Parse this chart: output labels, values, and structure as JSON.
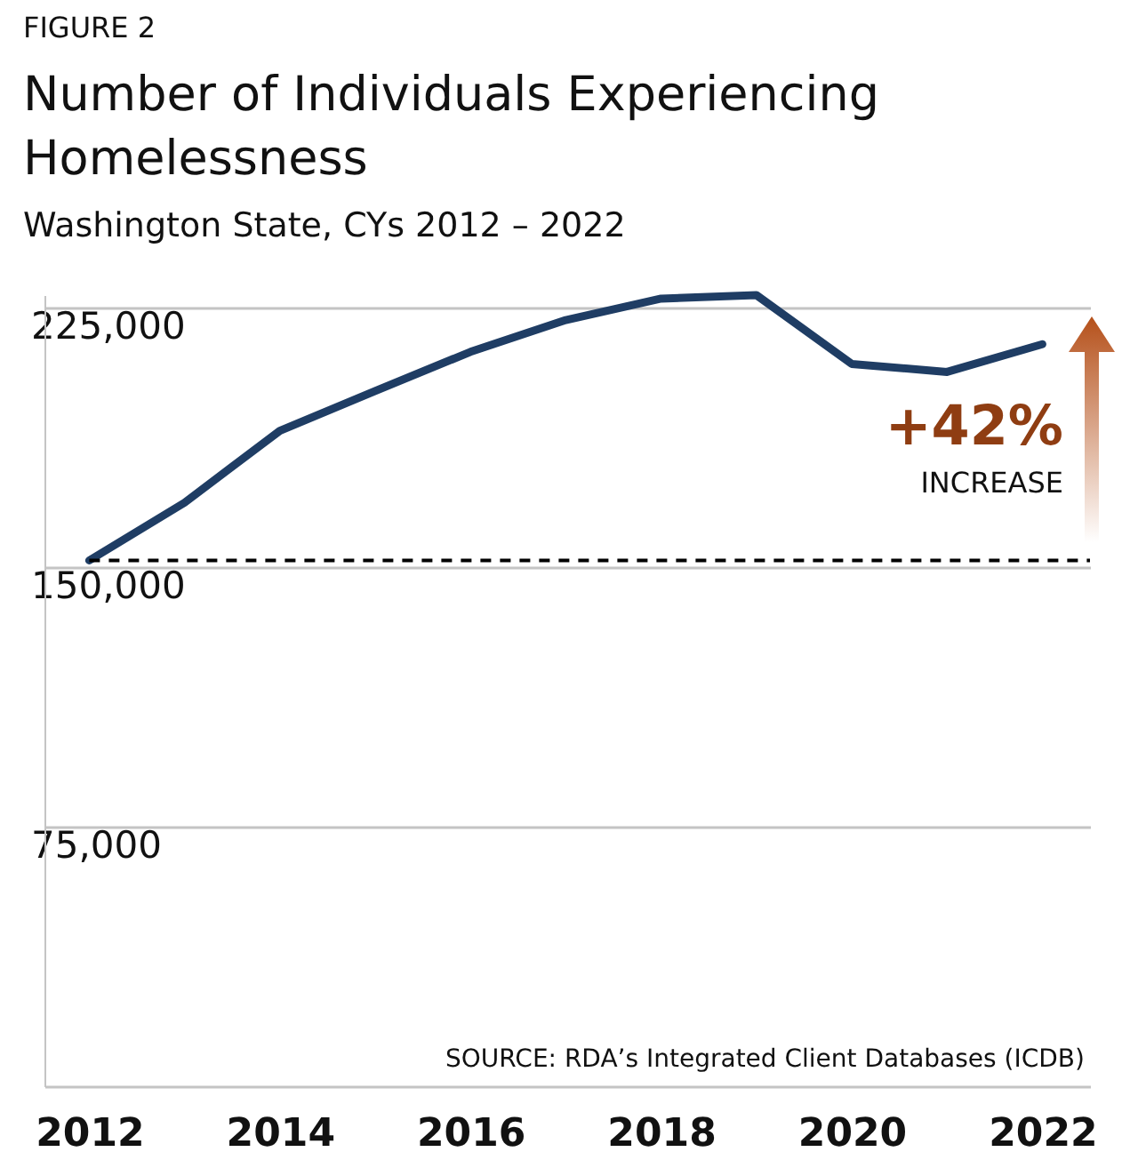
{
  "chart_data": {
    "type": "line",
    "title": "Number of Individuals Experiencing Homelessness",
    "subtitle": "Washington State, CYs 2012 – 2022",
    "annotations": [
      "FIGURE 2",
      "+42%",
      "INCREASE",
      "SOURCE: RDA’s Integrated Client Databases (ICDB)"
    ],
    "x": [
      2012,
      2013,
      2014,
      2015,
      2016,
      2017,
      2018,
      2019,
      2020,
      2021,
      2022
    ],
    "series": [
      {
        "color": "#1f3d64",
        "values": [
          152000,
          168700,
          189500,
          201000,
          212300,
          221500,
          227700,
          228700,
          208800,
          206500,
          214500
        ]
      }
    ],
    "xlim": [
      2011.53,
      2022.5
    ],
    "xticks": [
      2012,
      2014,
      2016,
      2018,
      2020,
      2022
    ],
    "ylim": [
      0,
      228700
    ],
    "yticks": [
      {
        "value": 0,
        "label": null
      },
      {
        "value": 75000,
        "label": "75,000"
      },
      {
        "value": 150000,
        "label": "150,000"
      },
      {
        "value": 225000,
        "label": "225,000"
      }
    ],
    "grid": "y",
    "ref_lines": [
      {
        "axis": "y",
        "value": 152000,
        "color": "#000000",
        "line_style": "dashed"
      }
    ]
  }
}
